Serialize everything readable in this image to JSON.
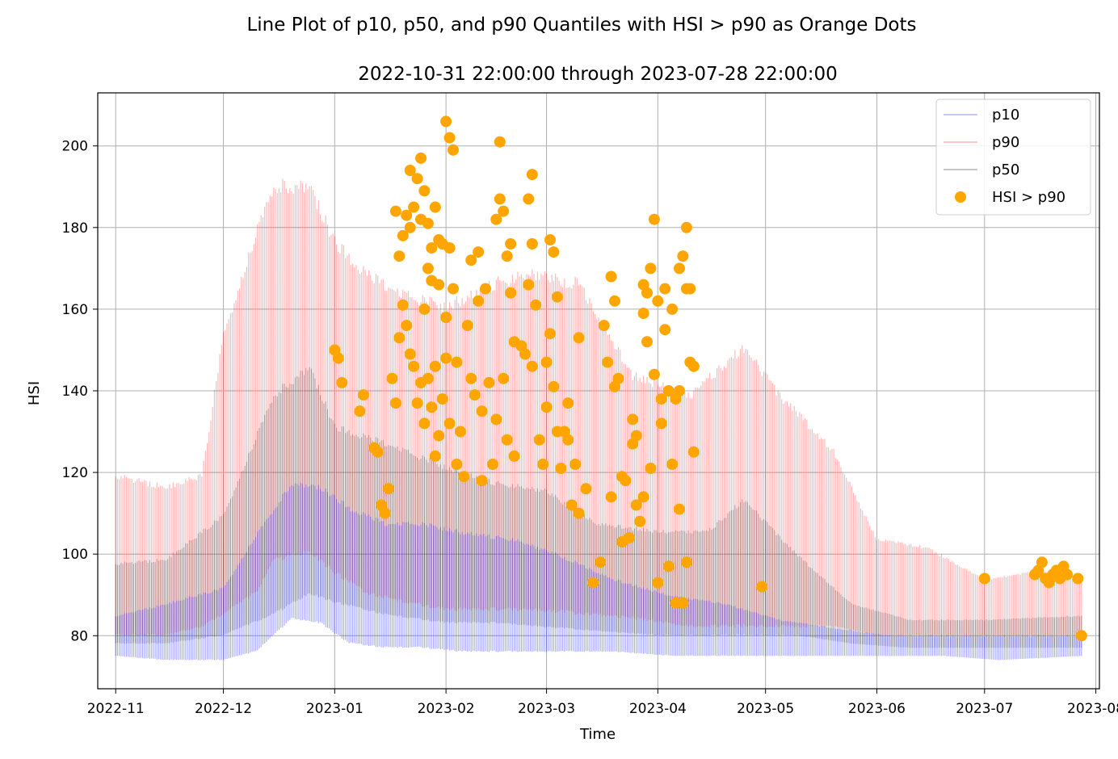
{
  "chart_data": {
    "type": "line",
    "title": "Line Plot of p10, p50, and p90 Quantiles with HSI > p90 as Orange Dots",
    "subtitle": "2022-10-31 22:00:00 through 2023-07-28 22:00:00",
    "xlabel": "Time",
    "ylabel": "HSI",
    "xlim": [
      "2022-10-27",
      "2023-08-02"
    ],
    "ylim": [
      67,
      213
    ],
    "grid": true,
    "legend_position": "top-right",
    "x_ticks": [
      {
        "date": "2022-11-01",
        "label": "2022-11"
      },
      {
        "date": "2022-12-01",
        "label": "2022-12"
      },
      {
        "date": "2023-01-01",
        "label": "2023-01"
      },
      {
        "date": "2023-02-01",
        "label": "2023-02"
      },
      {
        "date": "2023-03-01",
        "label": "2023-03"
      },
      {
        "date": "2023-04-01",
        "label": "2023-04"
      },
      {
        "date": "2023-05-01",
        "label": "2023-05"
      },
      {
        "date": "2023-06-01",
        "label": "2023-06"
      },
      {
        "date": "2023-07-01",
        "label": "2023-07"
      },
      {
        "date": "2023-08-01",
        "label": "2023-08"
      }
    ],
    "y_ticks": [
      {
        "value": 80,
        "label": "80"
      },
      {
        "value": 100,
        "label": "100"
      },
      {
        "value": 120,
        "label": "120"
      },
      {
        "value": 140,
        "label": "140"
      },
      {
        "value": 160,
        "label": "160"
      },
      {
        "value": 180,
        "label": "180"
      },
      {
        "value": 200,
        "label": "200"
      }
    ],
    "series": [
      {
        "name": "p10",
        "color": "#0000ff",
        "style": "daily-oscillating-band",
        "points": [
          [
            "2022-11-01",
            75,
            85
          ],
          [
            "2022-11-15",
            74,
            88
          ],
          [
            "2022-12-01",
            74,
            92
          ],
          [
            "2022-12-10",
            76,
            105
          ],
          [
            "2022-12-20",
            84,
            118
          ],
          [
            "2022-12-28",
            83,
            117
          ],
          [
            "2023-01-05",
            78,
            112
          ],
          [
            "2023-01-15",
            77,
            108
          ],
          [
            "2023-01-25",
            77,
            108
          ],
          [
            "2023-02-05",
            76,
            106
          ],
          [
            "2023-02-20",
            76,
            104
          ],
          [
            "2023-03-05",
            76,
            100
          ],
          [
            "2023-03-20",
            76,
            94
          ],
          [
            "2023-04-05",
            75,
            90
          ],
          [
            "2023-04-20",
            75,
            88
          ],
          [
            "2023-05-05",
            75,
            84
          ],
          [
            "2023-05-20",
            75,
            82
          ],
          [
            "2023-06-05",
            75,
            80
          ],
          [
            "2023-06-20",
            75,
            80
          ],
          [
            "2023-07-05",
            74,
            80
          ],
          [
            "2023-07-28",
            75,
            80
          ]
        ]
      },
      {
        "name": "p90",
        "color": "#ff0000",
        "style": "daily-oscillating-band",
        "points": [
          [
            "2022-11-01",
            80,
            120
          ],
          [
            "2022-11-15",
            80,
            117
          ],
          [
            "2022-11-25",
            82,
            120
          ],
          [
            "2022-12-01",
            85,
            155
          ],
          [
            "2022-12-10",
            90,
            180
          ],
          [
            "2022-12-15",
            98,
            192
          ],
          [
            "2022-12-25",
            100,
            192
          ],
          [
            "2023-01-01",
            95,
            178
          ],
          [
            "2023-01-10",
            90,
            170
          ],
          [
            "2023-01-20",
            88,
            165
          ],
          [
            "2023-02-01",
            86,
            162
          ],
          [
            "2023-02-15",
            86,
            168
          ],
          [
            "2023-02-25",
            86,
            170
          ],
          [
            "2023-03-10",
            85,
            168
          ],
          [
            "2023-03-25",
            84,
            145
          ],
          [
            "2023-04-10",
            82,
            140
          ],
          [
            "2023-04-25",
            82,
            152
          ],
          [
            "2023-05-05",
            82,
            140
          ],
          [
            "2023-05-20",
            82,
            126
          ],
          [
            "2023-06-01",
            80,
            104
          ],
          [
            "2023-06-15",
            80,
            102
          ],
          [
            "2023-07-01",
            80,
            94
          ],
          [
            "2023-07-15",
            80,
            96
          ],
          [
            "2023-07-28",
            80,
            95
          ]
        ]
      },
      {
        "name": "p50",
        "color": "#000000",
        "style": "daily-oscillating-band",
        "points": [
          [
            "2022-11-01",
            78,
            98
          ],
          [
            "2022-11-15",
            78,
            99
          ],
          [
            "2022-12-01",
            80,
            110
          ],
          [
            "2022-12-15",
            85,
            140
          ],
          [
            "2022-12-25",
            90,
            147
          ],
          [
            "2023-01-01",
            88,
            132
          ],
          [
            "2023-01-15",
            85,
            128
          ],
          [
            "2023-02-01",
            83,
            122
          ],
          [
            "2023-02-15",
            83,
            118
          ],
          [
            "2023-03-01",
            82,
            116
          ],
          [
            "2023-03-15",
            81,
            108
          ],
          [
            "2023-04-01",
            80,
            106
          ],
          [
            "2023-04-15",
            80,
            106
          ],
          [
            "2023-04-25",
            80,
            114
          ],
          [
            "2023-05-10",
            80,
            100
          ],
          [
            "2023-05-25",
            78,
            88
          ],
          [
            "2023-06-10",
            77,
            84
          ],
          [
            "2023-07-01",
            77,
            84
          ],
          [
            "2023-07-28",
            77,
            85
          ]
        ]
      },
      {
        "name": "HSI > p90",
        "color": "#ffa500",
        "style": "scatter",
        "points": [
          [
            "2023-01-01",
            150
          ],
          [
            "2023-01-02",
            148
          ],
          [
            "2023-01-03",
            142
          ],
          [
            "2023-01-08",
            135
          ],
          [
            "2023-01-09",
            139
          ],
          [
            "2023-01-12",
            126
          ],
          [
            "2023-01-13",
            125
          ],
          [
            "2023-01-14",
            112
          ],
          [
            "2023-01-15",
            110
          ],
          [
            "2023-01-16",
            116
          ],
          [
            "2023-01-17",
            143
          ],
          [
            "2023-01-18",
            137
          ],
          [
            "2023-01-18",
            184
          ],
          [
            "2023-01-19",
            173
          ],
          [
            "2023-01-19",
            153
          ],
          [
            "2023-01-20",
            161
          ],
          [
            "2023-01-20",
            178
          ],
          [
            "2023-01-21",
            183
          ],
          [
            "2023-01-21",
            156
          ],
          [
            "2023-01-22",
            194
          ],
          [
            "2023-01-22",
            180
          ],
          [
            "2023-01-22",
            149
          ],
          [
            "2023-01-23",
            185
          ],
          [
            "2023-01-23",
            146
          ],
          [
            "2023-01-24",
            192
          ],
          [
            "2023-01-24",
            137
          ],
          [
            "2023-01-25",
            197
          ],
          [
            "2023-01-25",
            142
          ],
          [
            "2023-01-25",
            182
          ],
          [
            "2023-01-26",
            189
          ],
          [
            "2023-01-26",
            160
          ],
          [
            "2023-01-26",
            132
          ],
          [
            "2023-01-27",
            181
          ],
          [
            "2023-01-27",
            143
          ],
          [
            "2023-01-27",
            170
          ],
          [
            "2023-01-28",
            175
          ],
          [
            "2023-01-28",
            167
          ],
          [
            "2023-01-28",
            136
          ],
          [
            "2023-01-29",
            185
          ],
          [
            "2023-01-29",
            146
          ],
          [
            "2023-01-29",
            124
          ],
          [
            "2023-01-30",
            177
          ],
          [
            "2023-01-30",
            166
          ],
          [
            "2023-01-30",
            129
          ],
          [
            "2023-01-31",
            176
          ],
          [
            "2023-01-31",
            138
          ],
          [
            "2023-02-01",
            206
          ],
          [
            "2023-02-01",
            158
          ],
          [
            "2023-02-01",
            148
          ],
          [
            "2023-02-02",
            202
          ],
          [
            "2023-02-02",
            175
          ],
          [
            "2023-02-02",
            132
          ],
          [
            "2023-02-03",
            199
          ],
          [
            "2023-02-03",
            165
          ],
          [
            "2023-02-04",
            147
          ],
          [
            "2023-02-04",
            122
          ],
          [
            "2023-02-05",
            130
          ],
          [
            "2023-02-06",
            119
          ],
          [
            "2023-02-07",
            156
          ],
          [
            "2023-02-08",
            172
          ],
          [
            "2023-02-08",
            143
          ],
          [
            "2023-02-09",
            139
          ],
          [
            "2023-02-10",
            174
          ],
          [
            "2023-02-10",
            162
          ],
          [
            "2023-02-11",
            135
          ],
          [
            "2023-02-11",
            118
          ],
          [
            "2023-02-12",
            165
          ],
          [
            "2023-02-13",
            142
          ],
          [
            "2023-02-14",
            122
          ],
          [
            "2023-02-15",
            182
          ],
          [
            "2023-02-15",
            133
          ],
          [
            "2023-02-16",
            187
          ],
          [
            "2023-02-16",
            201
          ],
          [
            "2023-02-17",
            184
          ],
          [
            "2023-02-17",
            143
          ],
          [
            "2023-02-18",
            173
          ],
          [
            "2023-02-18",
            128
          ],
          [
            "2023-02-19",
            176
          ],
          [
            "2023-02-19",
            164
          ],
          [
            "2023-02-20",
            124
          ],
          [
            "2023-02-20",
            152
          ],
          [
            "2023-02-22",
            151
          ],
          [
            "2023-02-23",
            149
          ],
          [
            "2023-02-24",
            187
          ],
          [
            "2023-02-24",
            166
          ],
          [
            "2023-02-25",
            193
          ],
          [
            "2023-02-25",
            176
          ],
          [
            "2023-02-25",
            146
          ],
          [
            "2023-02-26",
            161
          ],
          [
            "2023-02-27",
            128
          ],
          [
            "2023-02-28",
            122
          ],
          [
            "2023-03-01",
            136
          ],
          [
            "2023-03-01",
            147
          ],
          [
            "2023-03-02",
            177
          ],
          [
            "2023-03-02",
            154
          ],
          [
            "2023-03-03",
            174
          ],
          [
            "2023-03-03",
            141
          ],
          [
            "2023-03-04",
            163
          ],
          [
            "2023-03-04",
            130
          ],
          [
            "2023-03-05",
            121
          ],
          [
            "2023-03-06",
            130
          ],
          [
            "2023-03-07",
            128
          ],
          [
            "2023-03-07",
            137
          ],
          [
            "2023-03-08",
            112
          ],
          [
            "2023-03-09",
            122
          ],
          [
            "2023-03-10",
            153
          ],
          [
            "2023-03-10",
            110
          ],
          [
            "2023-03-12",
            116
          ],
          [
            "2023-03-14",
            93
          ],
          [
            "2023-03-16",
            98
          ],
          [
            "2023-03-17",
            156
          ],
          [
            "2023-03-18",
            147
          ],
          [
            "2023-03-19",
            168
          ],
          [
            "2023-03-19",
            114
          ],
          [
            "2023-03-20",
            162
          ],
          [
            "2023-03-20",
            141
          ],
          [
            "2023-03-21",
            143
          ],
          [
            "2023-03-22",
            103
          ],
          [
            "2023-03-22",
            119
          ],
          [
            "2023-03-23",
            118
          ],
          [
            "2023-03-24",
            104
          ],
          [
            "2023-03-25",
            133
          ],
          [
            "2023-03-25",
            127
          ],
          [
            "2023-03-26",
            129
          ],
          [
            "2023-03-26",
            112
          ],
          [
            "2023-03-27",
            108
          ],
          [
            "2023-03-28",
            166
          ],
          [
            "2023-03-28",
            159
          ],
          [
            "2023-03-28",
            114
          ],
          [
            "2023-03-29",
            164
          ],
          [
            "2023-03-29",
            152
          ],
          [
            "2023-03-30",
            170
          ],
          [
            "2023-03-30",
            121
          ],
          [
            "2023-03-31",
            182
          ],
          [
            "2023-03-31",
            144
          ],
          [
            "2023-04-01",
            93
          ],
          [
            "2023-04-01",
            162
          ],
          [
            "2023-04-02",
            138
          ],
          [
            "2023-04-02",
            132
          ],
          [
            "2023-04-03",
            165
          ],
          [
            "2023-04-03",
            155
          ],
          [
            "2023-04-04",
            140
          ],
          [
            "2023-04-04",
            97
          ],
          [
            "2023-04-05",
            160
          ],
          [
            "2023-04-05",
            122
          ],
          [
            "2023-04-06",
            88
          ],
          [
            "2023-04-06",
            138
          ],
          [
            "2023-04-07",
            140
          ],
          [
            "2023-04-07",
            170
          ],
          [
            "2023-04-07",
            111
          ],
          [
            "2023-04-08",
            173
          ],
          [
            "2023-04-08",
            88
          ],
          [
            "2023-04-09",
            180
          ],
          [
            "2023-04-09",
            165
          ],
          [
            "2023-04-09",
            98
          ],
          [
            "2023-04-10",
            165
          ],
          [
            "2023-04-10",
            147
          ],
          [
            "2023-04-11",
            146
          ],
          [
            "2023-04-11",
            125
          ],
          [
            "2023-04-30",
            92
          ],
          [
            "2023-07-01",
            94
          ],
          [
            "2023-07-15",
            95
          ],
          [
            "2023-07-16",
            96
          ],
          [
            "2023-07-17",
            98
          ],
          [
            "2023-07-18",
            94
          ],
          [
            "2023-07-19",
            93
          ],
          [
            "2023-07-20",
            95
          ],
          [
            "2023-07-21",
            96
          ],
          [
            "2023-07-22",
            94
          ],
          [
            "2023-07-23",
            97
          ],
          [
            "2023-07-24",
            95
          ],
          [
            "2023-07-27",
            94
          ],
          [
            "2023-07-28",
            80
          ]
        ]
      }
    ],
    "legend": [
      {
        "label": "p10",
        "color": "#0000ff",
        "kind": "line"
      },
      {
        "label": "p90",
        "color": "#ff0000",
        "kind": "line"
      },
      {
        "label": "p50",
        "color": "#000000",
        "kind": "line"
      },
      {
        "label": "HSI > p90",
        "color": "#ffa500",
        "kind": "marker"
      }
    ]
  }
}
